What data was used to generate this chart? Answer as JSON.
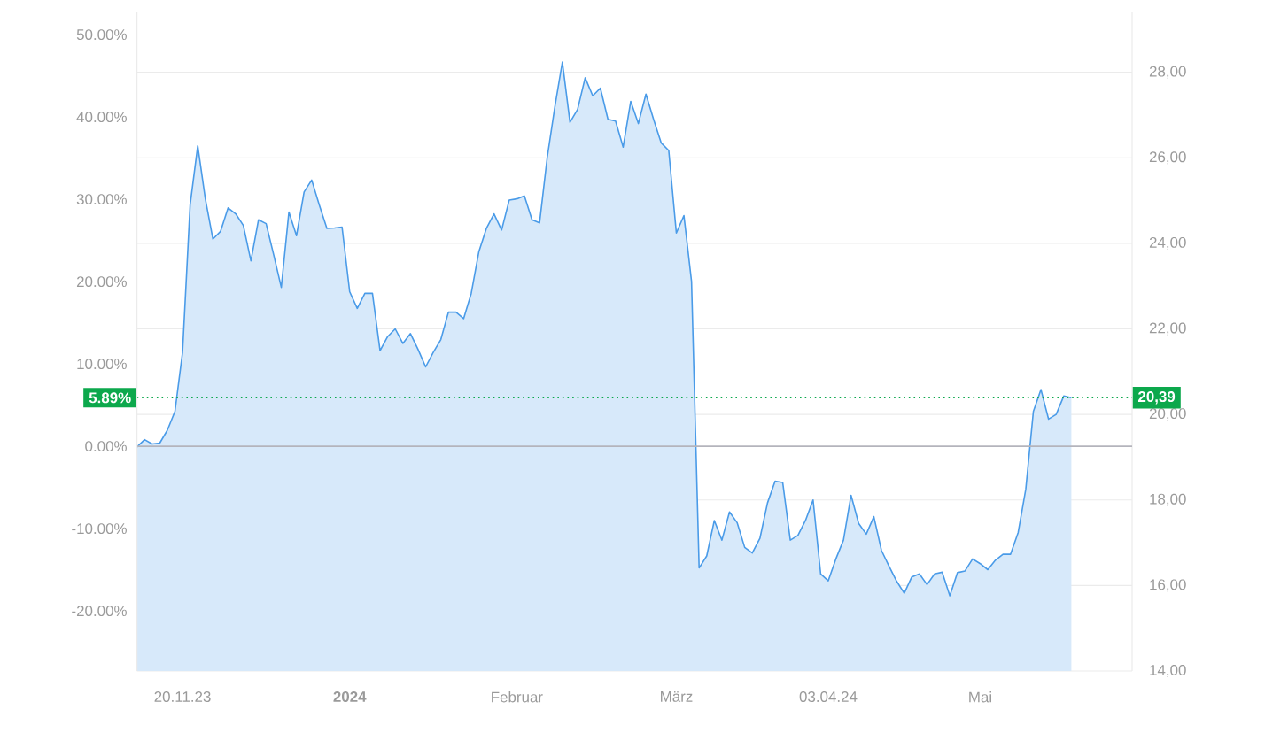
{
  "chart_data": {
    "type": "area",
    "categories": [
      null,
      null,
      null,
      null,
      null,
      null,
      "20.11.23",
      null,
      null,
      null,
      null,
      null,
      null,
      null,
      null,
      null,
      null,
      null,
      null,
      null,
      null,
      null,
      null,
      null,
      null,
      null,
      null,
      null,
      "**2024**",
      null,
      null,
      null,
      null,
      null,
      null,
      null,
      null,
      null,
      null,
      null,
      null,
      null,
      null,
      null,
      null,
      null,
      null,
      null,
      null,
      null,
      "Februar",
      null,
      null,
      null,
      null,
      null,
      null,
      null,
      null,
      null,
      null,
      null,
      null,
      null,
      null,
      null,
      null,
      null,
      null,
      null,
      null,
      "März",
      null,
      null,
      null,
      null,
      null,
      null,
      null,
      null,
      null,
      null,
      null,
      null,
      null,
      null,
      null,
      null,
      null,
      null,
      null,
      "03.04.24",
      null,
      null,
      null,
      null,
      null,
      null,
      null,
      null,
      null,
      null,
      null,
      null,
      null,
      null,
      null,
      null,
      null,
      null,
      null,
      "Mai",
      null,
      null,
      null,
      null,
      null,
      null,
      null,
      null,
      null,
      null,
      null,
      null
    ],
    "series": [
      {
        "color": "#4a9be8",
        "axis": "y2",
        "values": [
          19.24,
          19.41,
          19.31,
          19.33,
          19.63,
          20.07,
          21.45,
          24.9,
          26.28,
          25.04,
          24.1,
          24.28,
          24.83,
          24.69,
          24.42,
          23.59,
          24.55,
          24.46,
          23.73,
          22.97,
          24.73,
          24.18,
          25.2,
          25.48,
          24.9,
          24.35,
          24.36,
          24.38,
          22.87,
          22.48,
          22.83,
          22.83,
          21.49,
          21.82,
          22.0,
          21.66,
          21.89,
          21.52,
          21.11,
          21.45,
          21.75,
          22.39,
          22.39,
          22.24,
          22.83,
          23.8,
          24.35,
          24.69,
          24.31,
          25.01,
          25.04,
          25.11,
          24.55,
          24.48,
          26.0,
          27.18,
          28.24,
          26.83,
          27.13,
          27.87,
          27.45,
          27.63,
          26.9,
          26.86,
          26.25,
          27.32,
          26.8,
          27.49,
          26.9,
          26.35,
          26.17,
          24.24,
          24.65,
          23.11,
          16.41,
          16.69,
          17.52,
          17.06,
          17.72,
          17.47,
          16.89,
          16.76,
          17.1,
          17.93,
          18.44,
          18.41,
          17.06,
          17.17,
          17.52,
          18.0,
          16.27,
          16.11,
          16.62,
          17.06,
          18.11,
          17.45,
          17.2,
          17.61,
          16.82,
          16.45,
          16.1,
          15.82,
          16.2,
          16.27,
          16.02,
          16.27,
          16.31,
          15.76,
          16.3,
          16.34,
          16.62,
          16.51,
          16.37,
          16.59,
          16.73,
          16.73,
          17.24,
          18.25,
          20.07,
          20.58,
          19.89,
          20.0,
          20.43,
          20.39
        ]
      }
    ],
    "ylim": [
      -27.3,
      52.7
    ],
    "yticks": [
      {
        "value": -20,
        "label": "-20.00%"
      },
      {
        "value": -10,
        "label": "-10.00%"
      },
      {
        "value": 0,
        "label": "0.00%"
      },
      {
        "value": 10,
        "label": "10.00%"
      },
      {
        "value": 20,
        "label": "20.00%"
      },
      {
        "value": 30,
        "label": "30.00%"
      },
      {
        "value": 40,
        "label": "40.00%"
      },
      {
        "value": 50,
        "label": "50.00%"
      }
    ],
    "y2lim": [
      14,
      29.4
    ],
    "y2ticks": [
      {
        "value": 14,
        "label": "14,00"
      },
      {
        "value": 16,
        "label": "16,00"
      },
      {
        "value": 18,
        "label": "18,00"
      },
      {
        "value": 20,
        "label": "20,00"
      },
      {
        "value": 22,
        "label": "22,00"
      },
      {
        "value": 24,
        "label": "24,00"
      },
      {
        "value": 26,
        "label": "26,00"
      },
      {
        "value": 28,
        "label": "28,00"
      }
    ],
    "grid": "y",
    "annotations": [
      {
        "text": "5.89%",
        "y": 5.89
      }
    ],
    "ref_lines": [
      {
        "axis": "y",
        "value": 0,
        "color": "#b4b4bc",
        "line_style": "solid"
      },
      {
        "axis": "y2",
        "value": 20.39,
        "label": "20,39",
        "color": "#0ca84c",
        "line_style": "dotted"
      }
    ]
  }
}
